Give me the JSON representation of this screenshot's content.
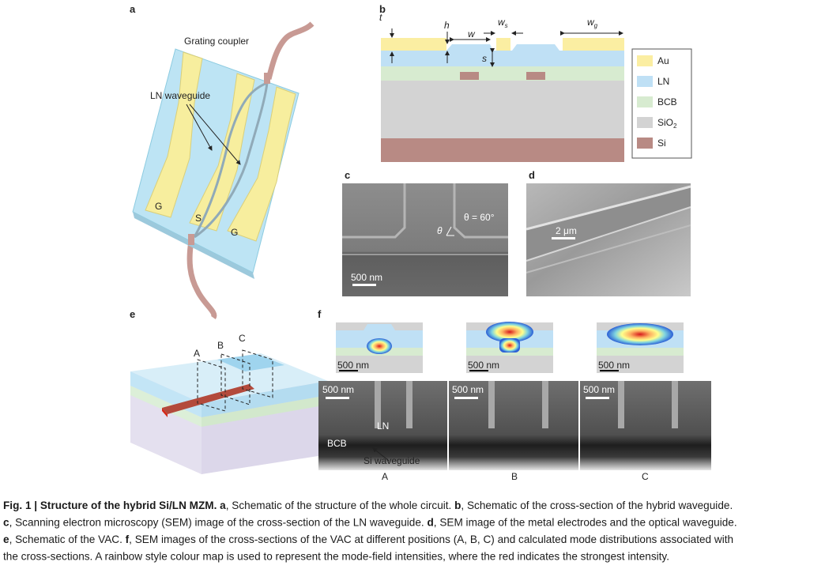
{
  "panels": {
    "a": {
      "label": "a",
      "grating_coupler": "Grating coupler",
      "ln_waveguide": "LN waveguide",
      "electrodes": [
        "G",
        "S",
        "G"
      ]
    },
    "b": {
      "label": "b",
      "dims": {
        "t": "t",
        "h": "h",
        "w": "w",
        "ws": {
          "base": "w",
          "sub": "s"
        },
        "wg": {
          "base": "w",
          "sub": "g"
        },
        "s": "s"
      },
      "legend": [
        {
          "name": "Au",
          "color": "#fbeea2"
        },
        {
          "name": "LN",
          "color": "#bfe0f5"
        },
        {
          "name": "BCB",
          "color": "#d7ebd0"
        },
        {
          "name": {
            "base": "SiO",
            "sub": "2"
          },
          "color": "#d3d3d3"
        },
        {
          "name": "Si",
          "color": "#b88a84"
        }
      ]
    },
    "c": {
      "label": "c",
      "angle": "θ = 60°",
      "theta": "θ",
      "scale": "500 nm"
    },
    "d": {
      "label": "d",
      "scale": "2 μm"
    },
    "e": {
      "label": "e",
      "sections": [
        "A",
        "B",
        "C"
      ]
    },
    "f": {
      "label": "f",
      "mode_scales": [
        "500 nm",
        "500 nm",
        "500 nm"
      ],
      "sem_scales": [
        "500 nm",
        "500 nm",
        "500 nm"
      ],
      "ln": "LN",
      "bcb": "BCB",
      "si_waveguide": "Si waveguide",
      "positions": [
        "A",
        "B",
        "C"
      ]
    }
  },
  "caption": [
    [
      {
        "text": "Fig. 1 | Structure of the hybrid Si/LN MZM. ",
        "bold": true
      },
      {
        "text": "a",
        "bold": true
      },
      {
        "text": ", Schematic of the structure of the whole circuit. ",
        "bold": false
      },
      {
        "text": "b",
        "bold": true
      },
      {
        "text": ", Schematic of the cross-section of the hybrid waveguide.",
        "bold": false
      }
    ],
    [
      {
        "text": "c",
        "bold": true
      },
      {
        "text": ", Scanning electron microscopy (SEM) image of the cross-section of the LN waveguide. ",
        "bold": false
      },
      {
        "text": "d",
        "bold": true
      },
      {
        "text": ", SEM image of the metal electrodes and the optical waveguide.",
        "bold": false
      }
    ],
    [
      {
        "text": "e",
        "bold": true
      },
      {
        "text": ", Schematic of the VAC. ",
        "bold": false
      },
      {
        "text": "f",
        "bold": true
      },
      {
        "text": ", SEM images of the cross-sections of the VAC at different positions (A, B, C) and calculated mode distributions associated with",
        "bold": false
      }
    ],
    [
      {
        "text": "the cross-sections. A rainbow style colour map is used to represent the mode-field intensities, where the red indicates the strongest intensity.",
        "bold": false
      }
    ]
  ]
}
